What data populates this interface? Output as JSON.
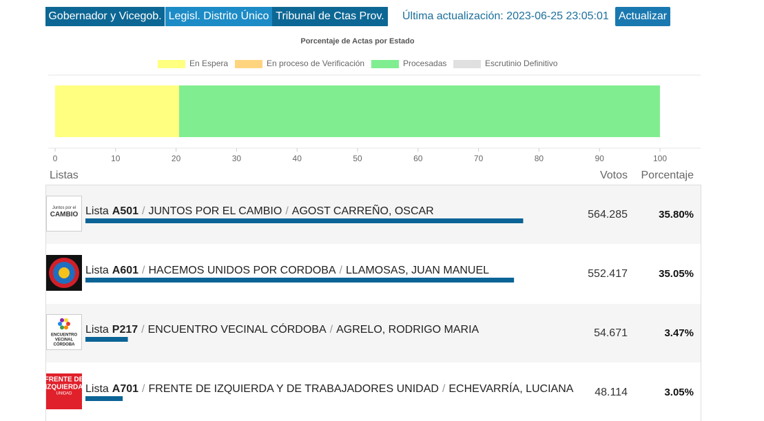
{
  "tabs": [
    "Gobernador y Vicegob.",
    "Legisl. Distrito Único",
    "Tribunal de Ctas Prov."
  ],
  "last_update": "Última actualización: 2023-06-25 23:05:01",
  "refresh_button": "Actualizar",
  "chart_data": {
    "type": "stacked-bar-horizontal",
    "title": "Porcentaje de Actas por Estado",
    "categories": [
      null
    ],
    "series": [
      {
        "name": "En Espera",
        "color": "#ffff80",
        "values": [
          20.5
        ]
      },
      {
        "name": "En proceso de Verificación",
        "color": "#ffd47f",
        "values": [
          0
        ]
      },
      {
        "name": "Procesadas",
        "color": "#80ee90",
        "values": [
          79.5
        ]
      },
      {
        "name": "Escrutinio Definitivo",
        "color": "#e0e0e0",
        "values": [
          0
        ]
      }
    ],
    "xlim": [
      0,
      100
    ],
    "xticks": [
      0,
      10,
      20,
      30,
      40,
      50,
      60,
      70,
      80,
      90,
      100
    ],
    "legend": "top"
  },
  "table": {
    "headers": [
      "Listas",
      "Votos",
      "Porcentaje"
    ],
    "separator": "/",
    "rows": [
      {
        "logo_text": [
          "Juntos por el",
          "CAMBIO"
        ],
        "prefix": "Lista",
        "code": "A501",
        "party": "JUNTOS POR EL CAMBIO",
        "candidate": "AGOST CARREÑO, OSCAR",
        "votes": "564.285",
        "percent": 35.8,
        "percent_label": "35.80%"
      },
      {
        "logo_text": [],
        "prefix": "Lista",
        "code": "A601",
        "party": "HACEMOS UNIDOS POR CORDOBA",
        "candidate": "LLAMOSAS, JUAN MANUEL",
        "votes": "552.417",
        "percent": 35.05,
        "percent_label": "35.05%"
      },
      {
        "logo_text": [
          "ENCUENTRO",
          "VECINAL",
          "CÓRDOBA"
        ],
        "prefix": "Lista",
        "code": "P217",
        "party": "ENCUENTRO VECINAL CÓRDOBA",
        "candidate": "AGRELO, RODRIGO MARIA",
        "votes": "54.671",
        "percent": 3.47,
        "percent_label": "3.47%"
      },
      {
        "logo_text": [
          "FRENTE DE",
          "IZQUIERDA",
          "UNIDAD"
        ],
        "prefix": "Lista",
        "code": "A701",
        "party": "FRENTE DE IZQUIERDA Y DE TRABAJADORES UNIDAD",
        "candidate": "ECHEVARRÍA, LUCIANA",
        "votes": "48.114",
        "percent": 3.05,
        "percent_label": "3.05%"
      }
    ]
  }
}
